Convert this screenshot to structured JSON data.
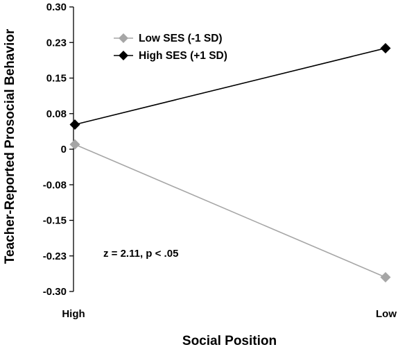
{
  "chart_data": {
    "type": "line",
    "xlabel": "Social Position",
    "ylabel": "Teacher-Reported Prosocial Behavior",
    "categories": [
      "High",
      "Low"
    ],
    "ylim": [
      -0.3,
      0.3
    ],
    "ytick_labels": [
      "0.30",
      "0.23",
      "0.15",
      "0.08",
      "0",
      "-0.08",
      "-0.15",
      "-0.23",
      "-0.30"
    ],
    "grid": false,
    "legend_position": "top-left",
    "series": [
      {
        "name": "Low SES (-1 SD)",
        "values": [
          0.01,
          -0.27
        ],
        "color": "#a6a6a6",
        "marker": "diamond"
      },
      {
        "name": "High SES (+1 SD)",
        "values": [
          0.052,
          0.213
        ],
        "color": "#000000",
        "marker": "diamond"
      }
    ],
    "annotation": "z = 2.11, p < .05"
  }
}
